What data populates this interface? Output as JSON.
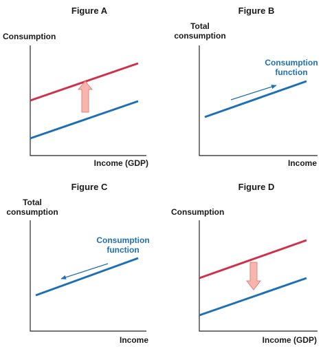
{
  "colors": {
    "blue_line": "#1f6fb5",
    "red_line": "#d1304a",
    "shift_arrow_fill": "#f6b5ad",
    "shift_arrow_stroke": "#e0857a",
    "text": "#1a1a1a",
    "axis": "#222222"
  },
  "figures": {
    "a": {
      "title": "Figure A",
      "ylabel": "Consumption",
      "xlabel": "Income (GDP)",
      "shift": "up"
    },
    "b": {
      "title": "Figure B",
      "ylabel_1": "Total",
      "ylabel_2": "consumption",
      "xlabel": "Income",
      "function_label_1": "Consumption",
      "function_label_2": "function",
      "movement": "along-up"
    },
    "c": {
      "title": "Figure C",
      "ylabel_1": "Total",
      "ylabel_2": "consumption",
      "xlabel": "Income",
      "function_label_1": "Consumption",
      "function_label_2": "function",
      "movement": "along-down"
    },
    "d": {
      "title": "Figure D",
      "ylabel": "Consumption",
      "xlabel": "Income (GDP)",
      "shift": "down"
    }
  }
}
